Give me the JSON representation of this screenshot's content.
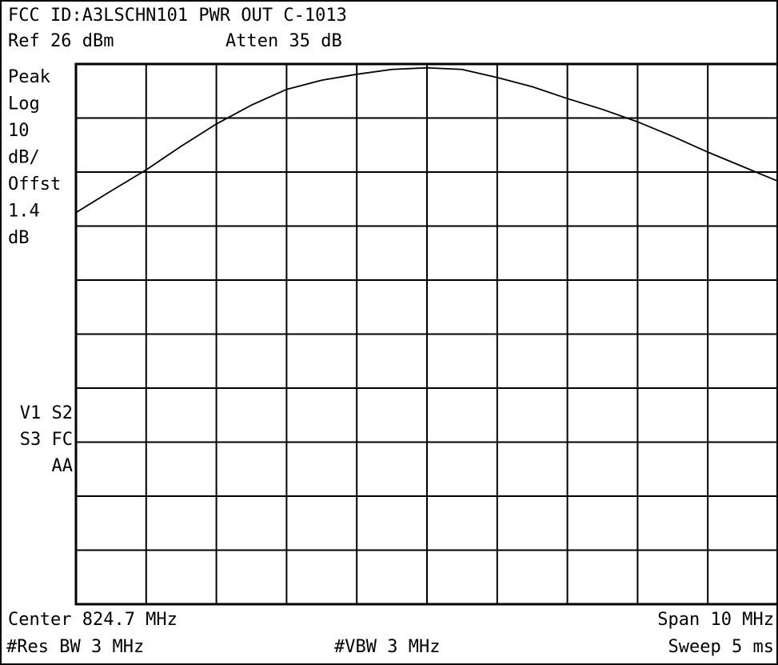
{
  "chart_data": {
    "type": "line",
    "title": "FCC ID:A3LSCHN101 PWR OUT C-1013",
    "reference": "Ref 26 dBm",
    "attenuation": "Atten 35 dB",
    "side_labels": [
      "Peak",
      "Log",
      "10",
      "dB/",
      "Offst",
      "1.4",
      "dB"
    ],
    "status_labels": [
      "V1 S2",
      "S3 FC",
      "AA"
    ],
    "center": "Center 824.7 MHz",
    "span": "Span 10 MHz",
    "res_bw": "#Res BW 3 MHz",
    "vbw": "#VBW 3 MHz",
    "sweep": "Sweep 5 ms",
    "x": [
      819.7,
      820.2,
      820.7,
      821.2,
      821.7,
      822.2,
      822.7,
      823.2,
      823.7,
      824.2,
      824.7,
      825.2,
      825.7,
      826.2,
      826.7,
      827.2,
      827.7,
      828.2,
      828.7,
      829.2,
      829.7
    ],
    "values": [
      -1.5,
      2.5,
      6.4,
      10.8,
      14.9,
      18.4,
      21.3,
      23.0,
      24.1,
      25.0,
      25.3,
      25.0,
      23.5,
      21.8,
      19.6,
      17.6,
      15.3,
      12.6,
      9.7,
      7.0,
      4.3
    ],
    "color": "#000000",
    "xlim": [
      819.7,
      829.7
    ],
    "ylim": [
      -74,
      26
    ],
    "grid": true
  }
}
